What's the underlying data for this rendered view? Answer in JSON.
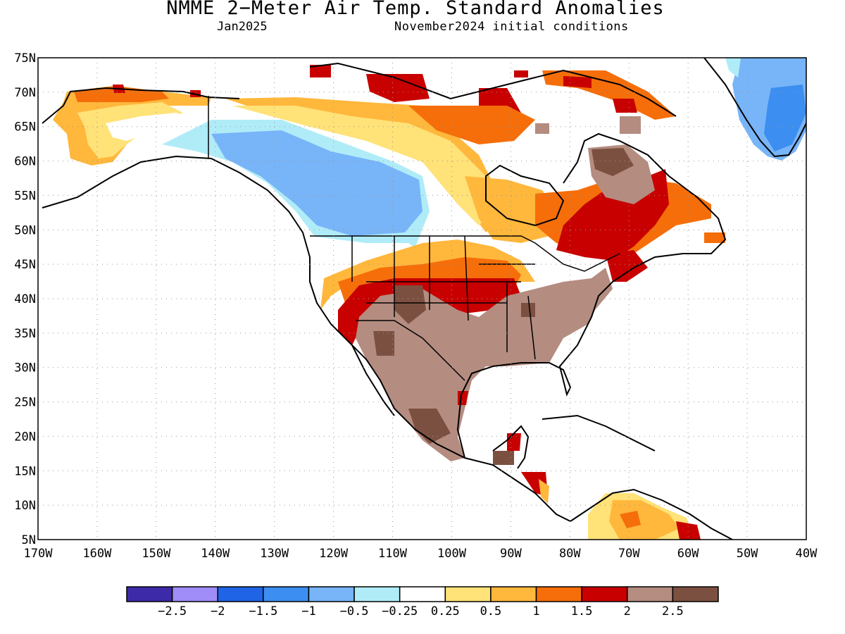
{
  "header": {
    "title": "NMME 2−Meter Air Temp. Standard Anomalies",
    "valid_month": "Jan2025",
    "initial_conditions": "November2024 initial conditions"
  },
  "map": {
    "lon_range": [
      -170,
      -40
    ],
    "lat_range": [
      5,
      75
    ],
    "lat_labels": [
      "5N",
      "10N",
      "15N",
      "20N",
      "25N",
      "30N",
      "35N",
      "40N",
      "45N",
      "50N",
      "55N",
      "60N",
      "65N",
      "70N",
      "75N"
    ],
    "lon_labels": [
      "170W",
      "160W",
      "150W",
      "140W",
      "130W",
      "120W",
      "110W",
      "100W",
      "90W",
      "80W",
      "70W",
      "60W",
      "50W",
      "40W"
    ],
    "gridlines": "dotted"
  },
  "legend": {
    "colors": [
      "#3d2aa8",
      "#a08cf6",
      "#1f64e6",
      "#3c8ef0",
      "#78b4f8",
      "#b0ecf8",
      "#ffffff",
      "#ffe278",
      "#ffb73c",
      "#f56e0a",
      "#c80000",
      "#b48c80",
      "#7c5040"
    ],
    "labels": [
      "−2.5",
      "−2",
      "−1.5",
      "−1",
      "−0.5",
      "−0.25",
      "0.25",
      "0.5",
      "1",
      "1.5",
      "2",
      "2.5"
    ]
  },
  "anomaly_regions": [
    {
      "level": "-1",
      "color": "#78b4f8",
      "desc": "western Canada / BC / Alberta"
    },
    {
      "level": "-1",
      "color": "#78b4f8",
      "desc": "Greenland"
    },
    {
      "level": "0.5",
      "color": "#ffe278",
      "desc": "Alaska and Hudson Bay margins"
    },
    {
      "level": "2",
      "color": "#c80000",
      "desc": "Quebec / Labrador, central Plains, Canadian Arctic islands"
    },
    {
      "level": "2.5",
      "color": "#b48c80",
      "desc": "southern US and Mexico"
    },
    {
      "level": ">2.5",
      "color": "#7c5040",
      "desc": "Mexico and US Southwest cores"
    }
  ]
}
